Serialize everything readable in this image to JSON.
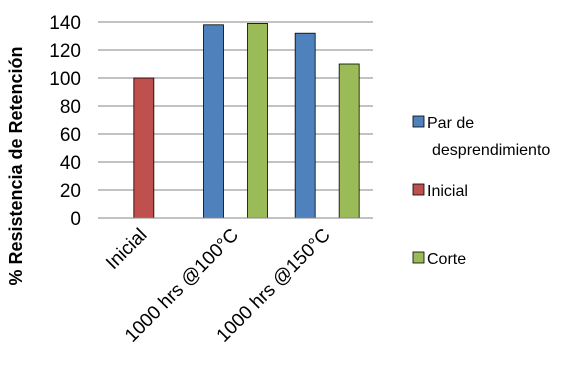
{
  "chart_data": {
    "type": "bar",
    "categories": [
      "Inicial",
      "1000 hrs @100°C",
      "1000 hrs @150°C"
    ],
    "series": [
      {
        "name": "Par de desprendimiento",
        "name_lines": [
          "Par de",
          "desprendimiento"
        ],
        "color": "#4F81BD",
        "values": [
          null,
          138,
          132
        ]
      },
      {
        "name": "Inicial",
        "name_lines": [
          "Inicial"
        ],
        "color": "#C0504D",
        "values": [
          100,
          null,
          null
        ]
      },
      {
        "name": "Corte",
        "name_lines": [
          "Corte"
        ],
        "color": "#9BBB59",
        "values": [
          null,
          139,
          110
        ]
      }
    ],
    "ylabel": "% Resistencia de Retención",
    "ylim": [
      0,
      140
    ],
    "yticks": [
      0,
      20,
      40,
      60,
      80,
      100,
      120,
      140
    ],
    "grid": true,
    "legend": "right"
  }
}
